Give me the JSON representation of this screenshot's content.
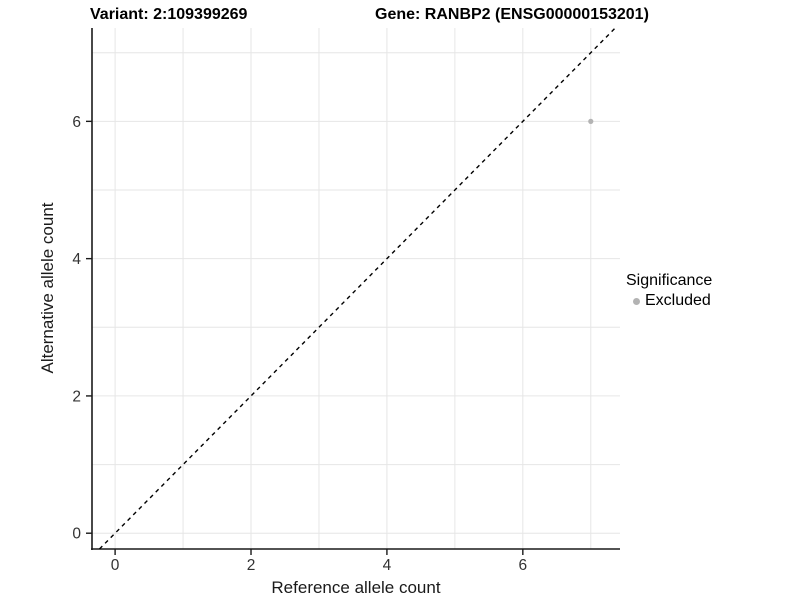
{
  "title": {
    "variant": "Variant: 2:109399269",
    "gene": "Gene: RANBP2 (ENSG00000153201)"
  },
  "chart_data": {
    "type": "scatter",
    "title": "Variant: 2:109399269   Gene: RANBP2 (ENSG00000153201)",
    "xlabel": "Reference allele count",
    "ylabel": "Alternative allele count",
    "xlim": [
      -0.34,
      7.43
    ],
    "ylim": [
      -0.23,
      7.36
    ],
    "x_ticks": [
      0,
      2,
      4,
      6
    ],
    "y_ticks": [
      0,
      2,
      4,
      6
    ],
    "grid": true,
    "gridline_positions": [
      0,
      1,
      2,
      3,
      4,
      5,
      6,
      7
    ],
    "identity_line": {
      "style": "dashed",
      "slope": 1,
      "intercept": 0,
      "color": "#000000"
    },
    "series": [
      {
        "name": "Excluded",
        "color": "#b3b3b3",
        "points": [
          {
            "x": 7,
            "y": 6
          }
        ]
      }
    ],
    "legend": {
      "title": "Significance",
      "position": "right",
      "items": [
        {
          "label": "Excluded",
          "color": "#b3b3b3"
        }
      ]
    }
  },
  "colors": {
    "background": "#ffffff",
    "gridline": "#e6e6e6",
    "axis_line": "#1a1a1a",
    "tick_text": "#333333",
    "point": "#b3b3b3"
  }
}
